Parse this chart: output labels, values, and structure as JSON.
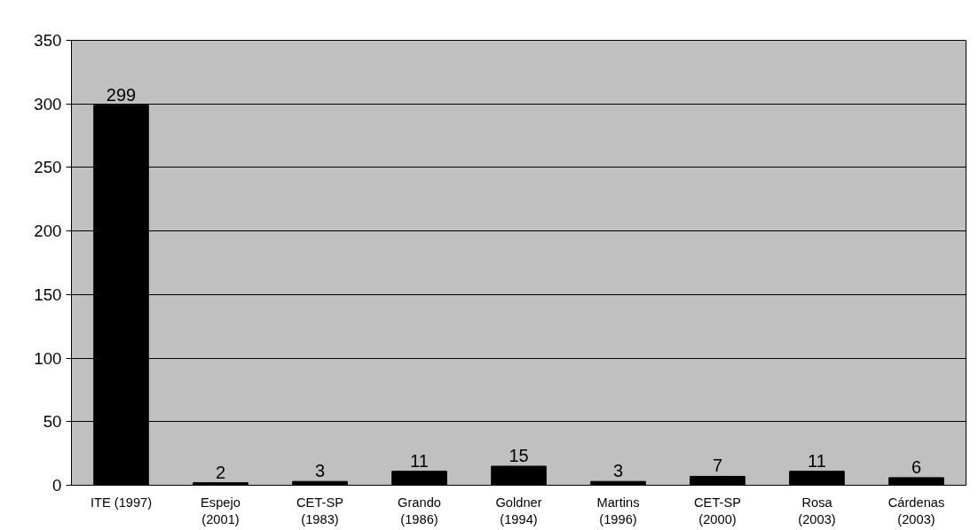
{
  "chart_data": {
    "type": "bar",
    "categories": [
      "ITE (1997)",
      "Espejo\n(2001)",
      "CET-SP\n(1983)",
      "Grando\n(1986)",
      "Goldner\n(1994)",
      "Martins\n(1996)",
      "CET-SP\n(2000)",
      "Rosa\n(2003)",
      "Cárdenas\n(2003)"
    ],
    "values": [
      299,
      2,
      3,
      11,
      15,
      3,
      7,
      11,
      6
    ],
    "color": "#000000",
    "ylim": [
      0,
      350
    ],
    "yticks": [
      0,
      50,
      100,
      150,
      200,
      250,
      300,
      350
    ],
    "grid": "y",
    "data_labels": true
  }
}
